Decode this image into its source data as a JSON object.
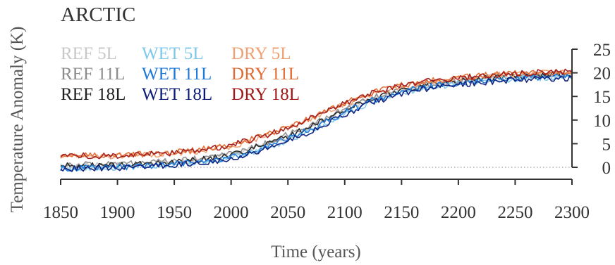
{
  "chart_data": {
    "type": "line",
    "title": "ARCTIC",
    "xlabel": "Time (years)",
    "ylabel": "Temperature Anomaly (K)",
    "xlim": [
      1850,
      2300
    ],
    "ylim": [
      -2,
      25
    ],
    "xticks": [
      1850,
      1900,
      1950,
      2000,
      2050,
      2100,
      2150,
      2200,
      2250,
      2300
    ],
    "yticks": [
      0,
      5,
      10,
      15,
      20,
      25
    ],
    "yaxis_position": "right",
    "zero_reference_line": "dotted",
    "legend_position": "top-left",
    "x": [
      1850,
      1875,
      1900,
      1925,
      1950,
      1975,
      2000,
      2025,
      2050,
      2075,
      2100,
      2125,
      2150,
      2175,
      2200,
      2225,
      2250,
      2275,
      2300
    ],
    "series": [
      {
        "name": "REF 5L",
        "color": "#c8c8c8",
        "values": [
          0.3,
          0.3,
          0.4,
          0.6,
          1.0,
          1.6,
          2.6,
          4.3,
          6.5,
          9.0,
          12.0,
          14.6,
          16.3,
          17.4,
          18.2,
          18.8,
          19.2,
          19.5,
          19.6
        ]
      },
      {
        "name": "REF 11L",
        "color": "#8c8c8c",
        "values": [
          0.6,
          0.6,
          0.7,
          0.9,
          1.3,
          1.9,
          2.9,
          4.6,
          6.9,
          9.4,
          12.4,
          14.9,
          16.6,
          17.7,
          18.5,
          19.0,
          19.4,
          19.7,
          19.8
        ]
      },
      {
        "name": "REF 18L",
        "color": "#222222",
        "values": [
          0.3,
          0.3,
          0.4,
          0.7,
          1.1,
          1.7,
          2.7,
          4.4,
          6.6,
          9.1,
          12.1,
          14.6,
          16.4,
          17.5,
          18.3,
          18.8,
          19.2,
          19.4,
          19.5
        ]
      },
      {
        "name": "WET 5L",
        "color": "#7ec8ec",
        "values": [
          -0.3,
          -0.2,
          -0.1,
          0.2,
          0.6,
          1.1,
          2.0,
          3.6,
          5.7,
          8.2,
          11.2,
          13.9,
          15.8,
          16.9,
          17.7,
          18.3,
          18.7,
          19.0,
          19.1
        ]
      },
      {
        "name": "WET 11L",
        "color": "#1a78d8",
        "values": [
          -0.2,
          -0.1,
          0.0,
          0.3,
          0.7,
          1.2,
          2.1,
          3.8,
          6.0,
          8.6,
          11.6,
          14.2,
          16.0,
          17.1,
          17.9,
          18.5,
          18.9,
          19.1,
          19.2
        ]
      },
      {
        "name": "WET 18L",
        "color": "#0a1a78",
        "values": [
          -0.3,
          -0.2,
          -0.1,
          0.2,
          0.5,
          1.0,
          1.9,
          3.5,
          5.6,
          8.1,
          11.1,
          13.8,
          15.6,
          16.7,
          17.5,
          18.1,
          18.5,
          18.8,
          18.9
        ]
      },
      {
        "name": "DRY 5L",
        "color": "#f0a070",
        "values": [
          2.3,
          2.3,
          2.4,
          2.6,
          3.0,
          3.5,
          4.5,
          6.1,
          8.3,
          10.6,
          13.3,
          15.6,
          17.1,
          18.1,
          18.8,
          19.3,
          19.7,
          20.0,
          20.1
        ]
      },
      {
        "name": "DRY 11L",
        "color": "#e06a30",
        "values": [
          2.5,
          2.5,
          2.6,
          2.8,
          3.2,
          3.8,
          4.8,
          6.4,
          8.6,
          10.9,
          13.6,
          15.9,
          17.3,
          18.3,
          19.0,
          19.5,
          19.9,
          20.2,
          20.3
        ]
      },
      {
        "name": "DRY 18L",
        "color": "#a01818",
        "values": [
          2.4,
          2.4,
          2.5,
          2.7,
          3.1,
          3.7,
          4.7,
          6.3,
          8.5,
          10.8,
          13.5,
          15.8,
          17.2,
          18.2,
          18.9,
          19.4,
          19.8,
          20.1,
          20.2
        ]
      }
    ]
  }
}
